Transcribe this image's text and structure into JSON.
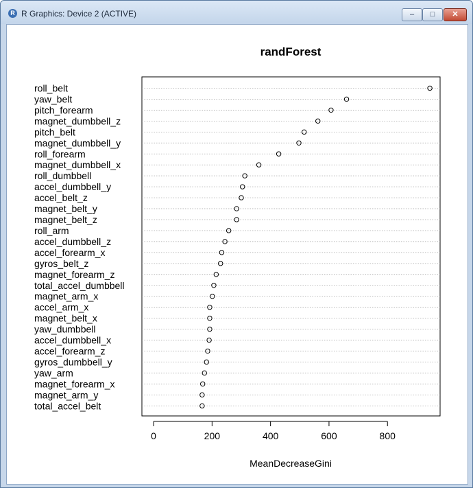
{
  "window": {
    "title": "R Graphics: Device 2 (ACTIVE)",
    "icon": "r-logo-icon",
    "buttons": {
      "minimize": "minimize-icon",
      "maximize": "maximize-icon",
      "close": "close-icon"
    }
  },
  "chart_data": {
    "type": "scatter",
    "style": "dotchart",
    "title": "randForest",
    "xlabel": "MeanDecreaseGini",
    "ylabel": "",
    "xlim": [
      -40,
      980
    ],
    "xticks": [
      0,
      200,
      400,
      600,
      800
    ],
    "grid": "dotted-horizontal",
    "marker": "open-circle",
    "categories": [
      "roll_belt",
      "yaw_belt",
      "pitch_forearm",
      "magnet_dumbbell_z",
      "pitch_belt",
      "magnet_dumbbell_y",
      "roll_forearm",
      "magnet_dumbbell_x",
      "roll_dumbbell",
      "accel_dumbbell_y",
      "accel_belt_z",
      "magnet_belt_y",
      "magnet_belt_z",
      "roll_arm",
      "accel_dumbbell_z",
      "accel_forearm_x",
      "gyros_belt_z",
      "magnet_forearm_z",
      "total_accel_dumbbell",
      "magnet_arm_x",
      "accel_arm_x",
      "magnet_belt_x",
      "yaw_dumbbell",
      "accel_dumbbell_x",
      "accel_forearm_z",
      "gyros_dumbbell_y",
      "yaw_arm",
      "magnet_forearm_x",
      "magnet_arm_y",
      "total_accel_belt"
    ],
    "values": [
      945,
      660,
      607,
      562,
      515,
      497,
      428,
      360,
      312,
      304,
      300,
      284,
      284,
      257,
      244,
      233,
      229,
      214,
      206,
      201,
      192,
      192,
      192,
      190,
      185,
      181,
      174,
      168,
      166,
      166
    ]
  }
}
